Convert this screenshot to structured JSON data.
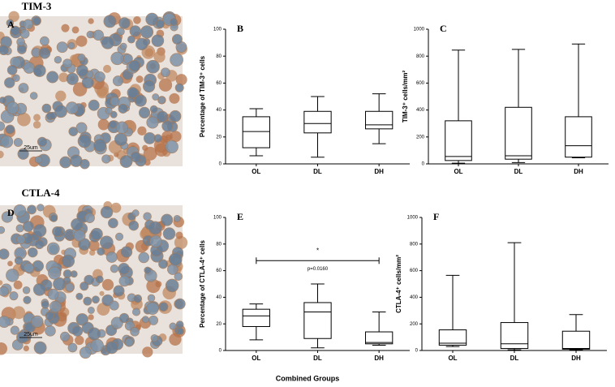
{
  "images": [
    {
      "title": "TIM-3",
      "label": "A",
      "scale_bar": "25um"
    },
    {
      "title": "CTLA-4",
      "label": "D",
      "scale_bar": "25um"
    }
  ],
  "x_label": "Combined Groups",
  "chart_data": [
    {
      "type": "box",
      "panel_label": "B",
      "y_label": "Percentage of TIM-3⁺ cells",
      "categories": [
        "OL",
        "DL",
        "DH"
      ],
      "boxes": [
        [
          6,
          12,
          24,
          35,
          41
        ],
        [
          5,
          23,
          30,
          39,
          50
        ],
        [
          15,
          26,
          29,
          39,
          52
        ]
      ],
      "ylim": [
        0,
        100
      ],
      "yticks": [
        0,
        20,
        40,
        60,
        80,
        100
      ],
      "color": "#000000"
    },
    {
      "type": "box",
      "panel_label": "C",
      "y_label": "TIM-3⁺ cells/mm²",
      "categories": [
        "OL",
        "DL",
        "DH"
      ],
      "boxes": [
        [
          5,
          25,
          55,
          320,
          845
        ],
        [
          10,
          35,
          60,
          420,
          850
        ],
        [
          45,
          50,
          135,
          350,
          890
        ]
      ],
      "ylim": [
        0,
        1000
      ],
      "yticks": [
        0,
        200,
        400,
        600,
        800,
        1000
      ],
      "color": "#000000"
    },
    {
      "type": "box",
      "panel_label": "E",
      "y_label": "Percentage of CTLA-4⁺ cells",
      "categories": [
        "OL",
        "DL",
        "DH"
      ],
      "boxes": [
        [
          8,
          18,
          26,
          31,
          35
        ],
        [
          2,
          9,
          29,
          36,
          50
        ],
        [
          4,
          5,
          6,
          14,
          29
        ]
      ],
      "ylim": [
        0,
        100
      ],
      "yticks": [
        0,
        20,
        40,
        60,
        80,
        100
      ],
      "color": "#000000",
      "annotations": [
        {
          "text": "*"
        },
        {
          "text": "p=0.0160"
        }
      ]
    },
    {
      "type": "box",
      "panel_label": "F",
      "y_label": "CTLA-4⁺ cells/mm²",
      "categories": [
        "OL",
        "DL",
        "DH"
      ],
      "boxes": [
        [
          30,
          40,
          55,
          155,
          565
        ],
        [
          5,
          15,
          50,
          210,
          810
        ],
        [
          5,
          10,
          15,
          145,
          270
        ]
      ],
      "ylim": [
        0,
        1000
      ],
      "yticks": [
        0,
        200,
        400,
        600,
        800,
        1000
      ],
      "color": "#000000"
    }
  ]
}
